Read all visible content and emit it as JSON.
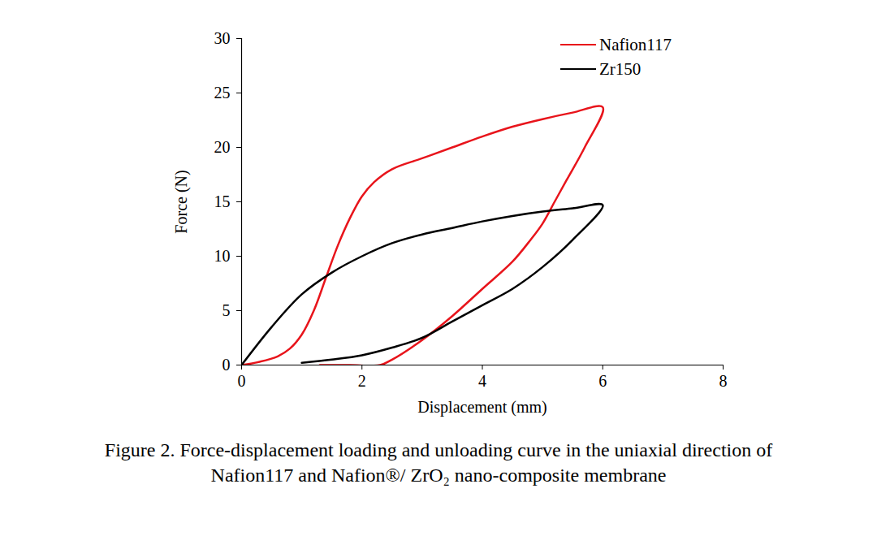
{
  "chart_data": {
    "type": "line",
    "caption": "Figure 2. Force-displacement loading and unloading curve in the uniaxial direction of Nafion117 and Nafion®/ ZrO₂ nano-composite membrane",
    "x_label": "Displacement (mm)",
    "y_label": "Force (N)",
    "xlim": [
      0,
      8
    ],
    "xticks": [
      0,
      2,
      4,
      6,
      8
    ],
    "ylim": [
      0,
      30
    ],
    "yticks": [
      0,
      5,
      10,
      15,
      20,
      25,
      30
    ],
    "grid": false,
    "legend": "top-right",
    "series": [
      {
        "name": "Nafion117",
        "color": "#e8141b",
        "x": [
          0,
          0.3,
          0.6,
          0.8,
          1.0,
          1.2,
          1.4,
          1.6,
          1.8,
          2.0,
          2.2,
          2.5,
          3.0,
          3.5,
          4.0,
          4.5,
          5.0,
          5.5,
          6.0,
          5.7,
          5.4,
          5.2,
          5.0,
          4.8,
          4.5,
          4.0,
          3.5,
          3.0,
          2.5,
          2.3,
          1.8,
          1.3
        ],
        "values": [
          0,
          0.3,
          0.8,
          1.5,
          2.8,
          5,
          8,
          11,
          13.5,
          15.5,
          16.8,
          18,
          19,
          20,
          21,
          21.9,
          22.6,
          23.2,
          23.7,
          20,
          17,
          15,
          13,
          11.5,
          9.5,
          7,
          4.5,
          2.3,
          0.5,
          0,
          0,
          0
        ]
      },
      {
        "name": "Zr150",
        "color": "#000000",
        "x": [
          0,
          0.5,
          1.0,
          1.5,
          2.0,
          2.5,
          3.0,
          3.5,
          4.0,
          4.5,
          5.0,
          5.5,
          6.0,
          5.5,
          5.0,
          4.5,
          4.0,
          3.5,
          3.0,
          2.5,
          2.0,
          1.5,
          1.0
        ],
        "values": [
          0,
          3.5,
          6.5,
          8.5,
          10,
          11.2,
          12,
          12.6,
          13.2,
          13.7,
          14.1,
          14.4,
          14.7,
          11.5,
          9,
          7,
          5.5,
          4,
          2.5,
          1.6,
          0.9,
          0.5,
          0.2
        ]
      }
    ]
  }
}
